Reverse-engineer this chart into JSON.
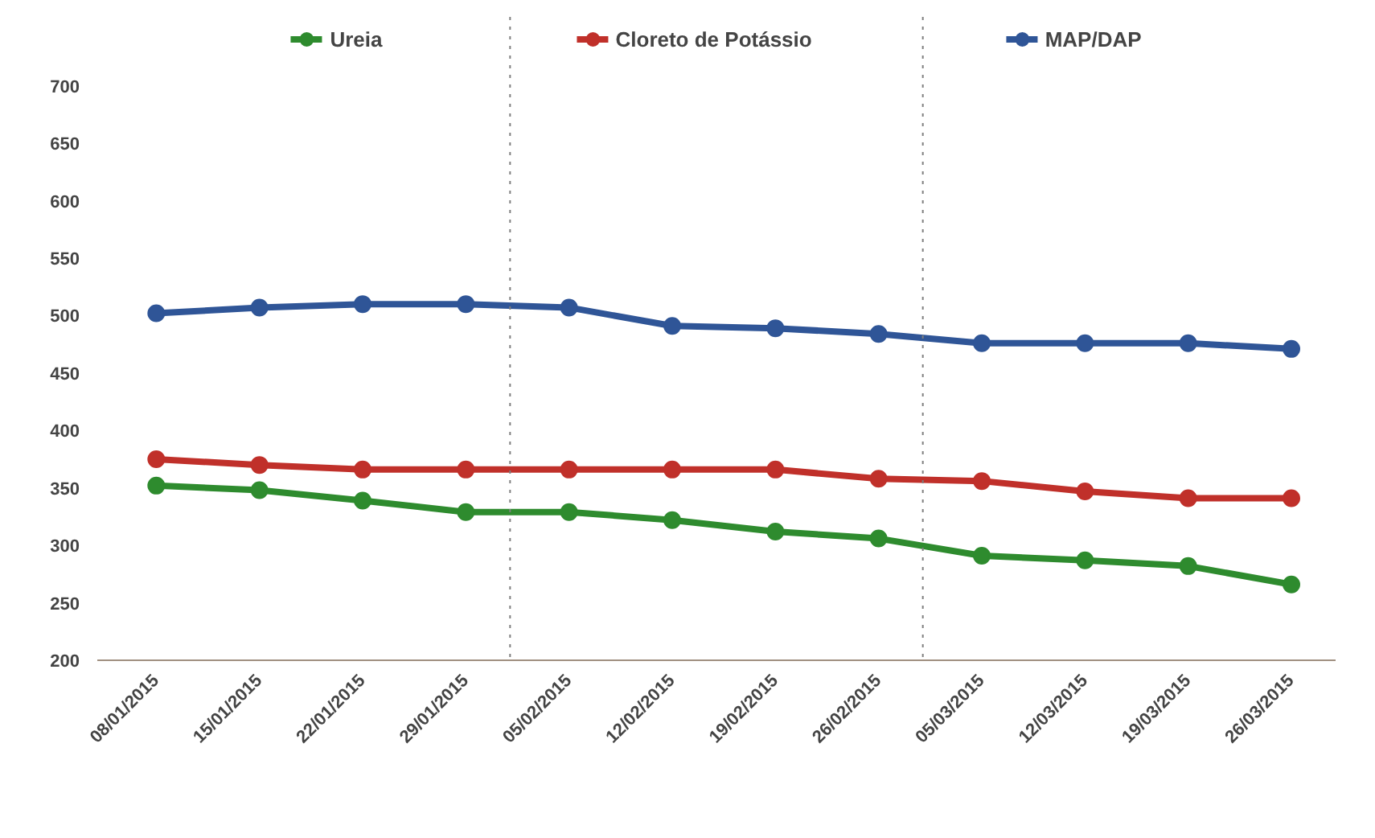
{
  "chart_data": {
    "type": "line",
    "x": [
      "2015-01-08",
      "2015-01-15",
      "2015-01-22",
      "2015-01-29",
      "2015-02-05",
      "2015-02-12",
      "2015-02-19",
      "2015-02-26",
      "2015-03-05",
      "2015-03-12",
      "2015-03-19",
      "2015-03-26"
    ],
    "series": [
      {
        "name": "Ureia",
        "color": "#2e8b2e",
        "values": [
          352,
          348,
          339,
          329,
          329,
          322,
          312,
          306,
          291,
          287,
          282,
          266
        ]
      },
      {
        "name": "Cloreto de Potássio",
        "color": "#c0302a",
        "values": [
          375,
          370,
          366,
          366,
          366,
          366,
          366,
          358,
          356,
          347,
          341,
          341
        ]
      },
      {
        "name": "MAP/DAP",
        "color": "#2f5597",
        "values": [
          502,
          507,
          510,
          510,
          507,
          491,
          489,
          484,
          476,
          476,
          476,
          471
        ]
      }
    ],
    "xlim": [
      "2015-01-04",
      "2015-03-29"
    ],
    "xticks": [
      {
        "value": "2015-01-08",
        "label": "08/01/2015"
      },
      {
        "value": "2015-01-15",
        "label": "15/01/2015"
      },
      {
        "value": "2015-01-22",
        "label": "22/01/2015"
      },
      {
        "value": "2015-01-29",
        "label": "29/01/2015"
      },
      {
        "value": "2015-02-05",
        "label": "05/02/2015"
      },
      {
        "value": "2015-02-12",
        "label": "12/02/2015"
      },
      {
        "value": "2015-02-19",
        "label": "19/02/2015"
      },
      {
        "value": "2015-02-26",
        "label": "26/02/2015"
      },
      {
        "value": "2015-03-05",
        "label": "05/03/2015"
      },
      {
        "value": "2015-03-12",
        "label": "12/03/2015"
      },
      {
        "value": "2015-03-19",
        "label": "19/03/2015"
      },
      {
        "value": "2015-03-26",
        "label": "26/03/2015"
      }
    ],
    "ylim": [
      200,
      760
    ],
    "yticks": [
      200,
      250,
      300,
      350,
      400,
      450,
      500,
      550,
      600,
      650,
      700
    ],
    "ref_lines": [
      {
        "axis": "x",
        "value": "2015-02-01",
        "line_style": "dotted",
        "color": "#7f7f7f"
      },
      {
        "axis": "x",
        "value": "2015-03-01",
        "line_style": "dotted",
        "color": "#7f7f7f"
      }
    ],
    "grid": false,
    "legend": "top",
    "marker": "circle",
    "line_style": "solid"
  }
}
